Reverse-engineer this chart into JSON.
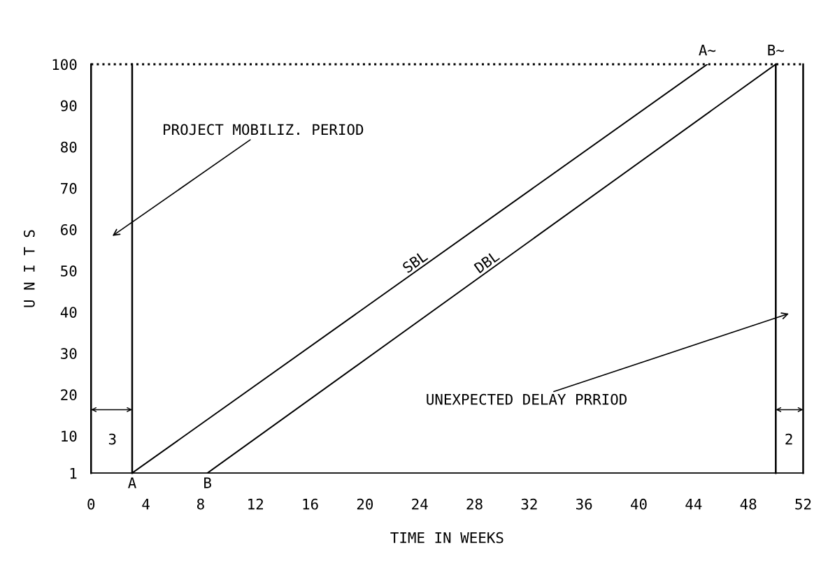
{
  "chart_data": {
    "type": "line",
    "xlabel": "TIME IN WEEKS",
    "ylabel": "U N I T S",
    "xlim": [
      0,
      52
    ],
    "xticks": [
      0,
      4,
      8,
      12,
      16,
      20,
      24,
      28,
      32,
      36,
      40,
      44,
      48,
      52
    ],
    "ylim": [
      1,
      100
    ],
    "yticks": [
      1,
      10,
      20,
      30,
      40,
      50,
      60,
      70,
      80,
      90,
      100
    ],
    "grid": false,
    "legend": false,
    "marker": "none",
    "line_style": "solid",
    "series": [
      {
        "name": "SBL",
        "color": "#000000",
        "x": [
          3,
          45
        ],
        "values": [
          1,
          100
        ]
      },
      {
        "name": "DBL",
        "color": "#000000",
        "x": [
          8.5,
          50
        ],
        "values": [
          1,
          100
        ]
      }
    ],
    "ref_lines": [
      {
        "axis": "x",
        "value": 0,
        "color": "#000000",
        "line_style": "solid"
      },
      {
        "axis": "x",
        "value": 3,
        "color": "#000000",
        "line_style": "solid"
      },
      {
        "axis": "x",
        "value": 50,
        "color": "#000000",
        "line_style": "solid"
      },
      {
        "axis": "x",
        "value": 52,
        "color": "#000000",
        "line_style": "solid"
      },
      {
        "axis": "y",
        "value": 100,
        "color": "#000000",
        "line_style": "dotted"
      }
    ],
    "annotations": [
      "PROJECT MOBILIZ. PERIOD",
      "UNEXPECTED DELAY PRRIOD",
      "3",
      "2",
      {
        "text": "A",
        "x": 3,
        "y": 1
      },
      {
        "text": "B",
        "x": 8.5,
        "y": 1
      },
      {
        "text": "A~",
        "x": 45,
        "y": 100
      },
      {
        "text": "B~",
        "x": 50,
        "y": 100
      }
    ]
  }
}
